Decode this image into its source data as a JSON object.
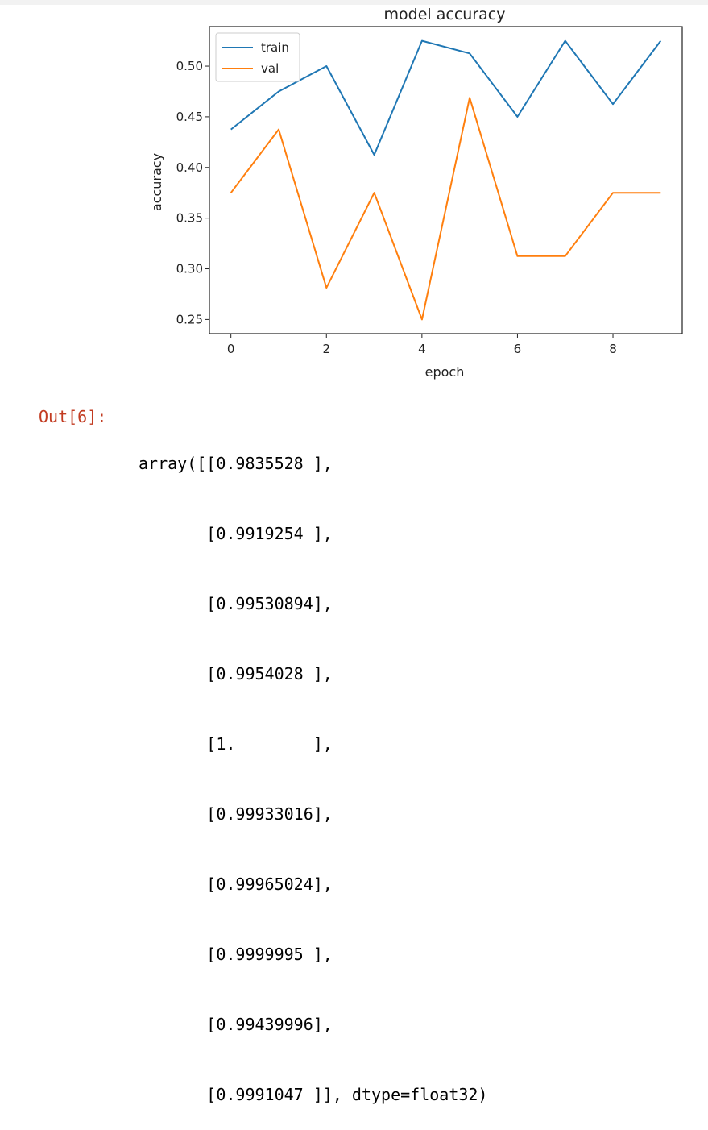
{
  "chart_data": {
    "type": "line",
    "title": "model accuracy",
    "xlabel": "epoch",
    "ylabel": "accuracy",
    "x": [
      0,
      1,
      2,
      3,
      4,
      5,
      6,
      7,
      8,
      9
    ],
    "series": [
      {
        "name": "train",
        "color": "#1f77b4",
        "values": [
          0.4375,
          0.475,
          0.5,
          0.4125,
          0.525,
          0.5125,
          0.45,
          0.525,
          0.4625,
          0.525
        ]
      },
      {
        "name": "val",
        "color": "#ff7f0e",
        "values": [
          0.375,
          0.4375,
          0.28125,
          0.375,
          0.25,
          0.46875,
          0.3125,
          0.3125,
          0.375,
          0.375
        ]
      }
    ],
    "xlim": [
      -0.45,
      9.45
    ],
    "ylim": [
      0.236,
      0.539
    ],
    "xticks": [
      0,
      2,
      4,
      6,
      8
    ],
    "yticks": [
      0.25,
      0.3,
      0.35,
      0.4,
      0.45,
      0.5
    ],
    "ytick_labels": [
      "0.25",
      "0.30",
      "0.35",
      "0.40",
      "0.45",
      "0.50"
    ],
    "grid": false,
    "legend_position": "top-left"
  },
  "output": {
    "prompt": "Out[6]:",
    "lines": [
      "array([[0.9835528 ],",
      "       [0.9919254 ],",
      "       [0.99530894],",
      "       [0.9954028 ],",
      "       [1.        ],",
      "       [0.99933016],",
      "       [0.99965024],",
      "       [0.9999995 ],",
      "       [0.99439996],",
      "       [0.9991047 ]], dtype=float32)"
    ]
  }
}
